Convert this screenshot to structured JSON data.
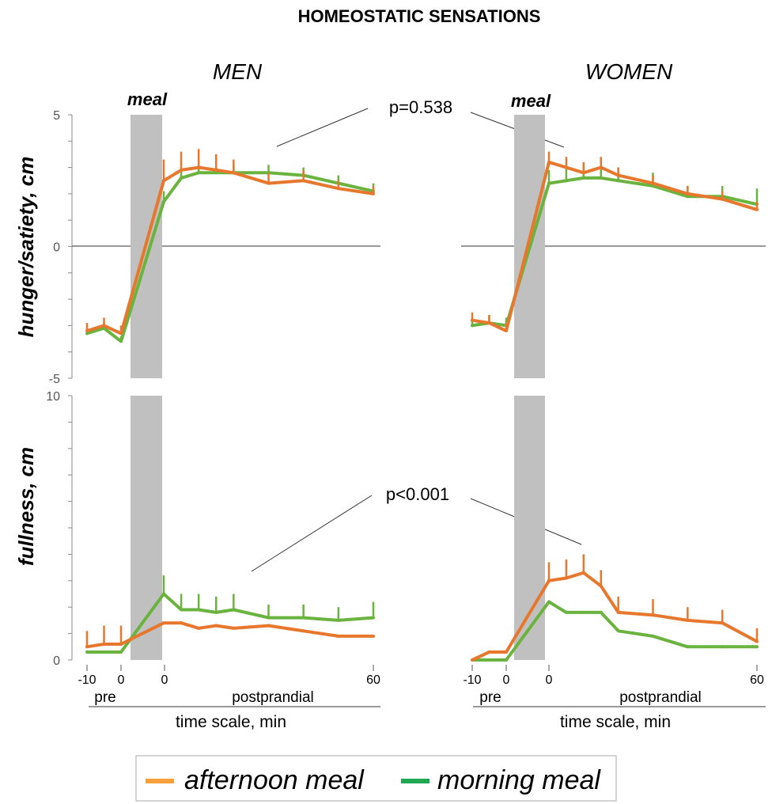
{
  "figure": {
    "title": "HOMEOSTATIC SENSATIONS",
    "x_axis_label": "time scale, min",
    "period_labels": {
      "pre": "pre",
      "post": "postprandial"
    },
    "meal_label": "meal",
    "x_tick_labels": [
      "-10",
      "0",
      "0",
      "60"
    ],
    "p_values": {
      "hunger_satiety": "p=0.538",
      "fullness": "p<0.001"
    },
    "legend": [
      {
        "label": "afternoon meal",
        "color": "#f7a03c"
      },
      {
        "label": "morning meal",
        "color": "#21a852"
      }
    ],
    "colors": {
      "afternoon": "#e8772e",
      "morning": "#6ab33e",
      "meal_band": "#c0c0c0"
    }
  },
  "chart_data": [
    {
      "type": "line",
      "panel": "MEN",
      "ylabel": "hunger/satiety, cm",
      "ylim": [
        -5,
        5
      ],
      "y_ticks": [
        -5,
        0,
        5
      ],
      "series": [
        {
          "name": "afternoon meal",
          "phase": "pre",
          "x": [
            -10,
            -5,
            0
          ],
          "y": [
            -3.2,
            -3.0,
            -3.3
          ],
          "err": [
            0.3,
            0.3,
            0.3
          ]
        },
        {
          "name": "afternoon meal",
          "phase": "postprandial",
          "x": [
            0,
            5,
            10,
            15,
            20,
            30,
            40,
            50,
            60
          ],
          "y": [
            2.5,
            2.9,
            3.0,
            2.9,
            2.8,
            2.4,
            2.5,
            2.2,
            2.0
          ],
          "err": [
            0.8,
            0.7,
            0.7,
            0.6,
            0.5,
            0.4,
            0.4,
            0.3,
            0.3
          ]
        },
        {
          "name": "morning meal",
          "phase": "pre",
          "x": [
            -10,
            -5,
            0
          ],
          "y": [
            -3.3,
            -3.1,
            -3.6
          ],
          "err": [
            0.2,
            0.2,
            0.2
          ]
        },
        {
          "name": "morning meal",
          "phase": "postprandial",
          "x": [
            0,
            5,
            10,
            15,
            20,
            30,
            40,
            50,
            60
          ],
          "y": [
            1.7,
            2.6,
            2.8,
            2.8,
            2.8,
            2.8,
            2.7,
            2.4,
            2.1
          ],
          "err": [
            0.4,
            0.3,
            0.3,
            0.3,
            0.3,
            0.3,
            0.3,
            0.3,
            0.3
          ]
        }
      ]
    },
    {
      "type": "line",
      "panel": "WOMEN",
      "ylabel": "hunger/satiety, cm",
      "ylim": [
        -5,
        5
      ],
      "y_ticks": [
        -5,
        0,
        5
      ],
      "series": [
        {
          "name": "afternoon meal",
          "phase": "pre",
          "x": [
            -10,
            -5,
            0
          ],
          "y": [
            -2.8,
            -2.9,
            -3.2
          ],
          "err": [
            0.3,
            0.3,
            0.3
          ]
        },
        {
          "name": "afternoon meal",
          "phase": "postprandial",
          "x": [
            0,
            5,
            10,
            15,
            20,
            30,
            40,
            50,
            60
          ],
          "y": [
            3.2,
            3.0,
            2.8,
            3.0,
            2.7,
            2.4,
            2.0,
            1.8,
            1.4
          ],
          "err": [
            0.4,
            0.4,
            0.4,
            0.4,
            0.3,
            0.3,
            0.3,
            0.3,
            0.3
          ]
        },
        {
          "name": "morning meal",
          "phase": "pre",
          "x": [
            -10,
            -5,
            0
          ],
          "y": [
            -3.0,
            -2.9,
            -3.0
          ],
          "err": [
            0.3,
            0.3,
            0.3
          ]
        },
        {
          "name": "morning meal",
          "phase": "postprandial",
          "x": [
            0,
            5,
            10,
            15,
            20,
            30,
            40,
            50,
            60
          ],
          "y": [
            2.4,
            2.5,
            2.6,
            2.6,
            2.5,
            2.3,
            1.9,
            1.9,
            1.6
          ],
          "err": [
            0.5,
            0.6,
            0.5,
            0.5,
            0.5,
            0.5,
            0.4,
            0.4,
            0.6
          ]
        }
      ]
    },
    {
      "type": "line",
      "panel": "MEN",
      "ylabel": "fullness, cm",
      "ylim": [
        0,
        10
      ],
      "y_ticks": [
        0,
        10
      ],
      "series": [
        {
          "name": "afternoon meal",
          "phase": "pre",
          "x": [
            -10,
            -5,
            0
          ],
          "y": [
            0.5,
            0.6,
            0.6
          ],
          "err": [
            0.6,
            0.7,
            0.7
          ]
        },
        {
          "name": "afternoon meal",
          "phase": "postprandial",
          "x": [
            0,
            5,
            10,
            15,
            20,
            30,
            40,
            50,
            60
          ],
          "y": [
            1.4,
            1.4,
            1.2,
            1.3,
            1.2,
            1.3,
            1.1,
            0.9,
            0.9
          ],
          "err": [
            0.0,
            0.0,
            0.0,
            0.0,
            0.0,
            0.0,
            0.0,
            0.0,
            0.0
          ]
        },
        {
          "name": "morning meal",
          "phase": "pre",
          "x": [
            -10,
            -5,
            0
          ],
          "y": [
            0.3,
            0.3,
            0.3
          ],
          "err": [
            0.0,
            0.0,
            0.0
          ]
        },
        {
          "name": "morning meal",
          "phase": "postprandial",
          "x": [
            0,
            5,
            10,
            15,
            20,
            30,
            40,
            50,
            60
          ],
          "y": [
            2.5,
            1.9,
            1.9,
            1.8,
            1.9,
            1.6,
            1.6,
            1.5,
            1.6
          ],
          "err": [
            0.7,
            0.6,
            0.6,
            0.6,
            0.6,
            0.5,
            0.5,
            0.5,
            0.6
          ]
        }
      ]
    },
    {
      "type": "line",
      "panel": "WOMEN",
      "ylabel": "fullness, cm",
      "ylim": [
        0,
        10
      ],
      "y_ticks": [
        0,
        10
      ],
      "series": [
        {
          "name": "afternoon meal",
          "phase": "pre",
          "x": [
            -10,
            -5,
            0
          ],
          "y": [
            0.0,
            0.3,
            0.3
          ],
          "err": [
            0.0,
            0.0,
            0.0
          ]
        },
        {
          "name": "afternoon meal",
          "phase": "postprandial",
          "x": [
            0,
            5,
            10,
            15,
            20,
            30,
            40,
            50,
            60
          ],
          "y": [
            3.0,
            3.1,
            3.3,
            2.8,
            1.8,
            1.7,
            1.5,
            1.4,
            0.7
          ],
          "err": [
            0.7,
            0.7,
            0.7,
            0.6,
            0.6,
            0.6,
            0.5,
            0.5,
            0.5
          ]
        },
        {
          "name": "morning meal",
          "phase": "pre",
          "x": [
            -10,
            -5,
            0
          ],
          "y": [
            0.0,
            0.0,
            0.0
          ],
          "err": [
            0.0,
            0.0,
            0.0
          ]
        },
        {
          "name": "morning meal",
          "phase": "postprandial",
          "x": [
            0,
            5,
            10,
            15,
            20,
            30,
            40,
            50,
            60
          ],
          "y": [
            2.2,
            1.8,
            1.8,
            1.8,
            1.1,
            0.9,
            0.5,
            0.5,
            0.5
          ],
          "err": [
            0.0,
            0.0,
            0.0,
            0.0,
            0.0,
            0.0,
            0.0,
            0.0,
            0.0
          ]
        }
      ]
    }
  ]
}
